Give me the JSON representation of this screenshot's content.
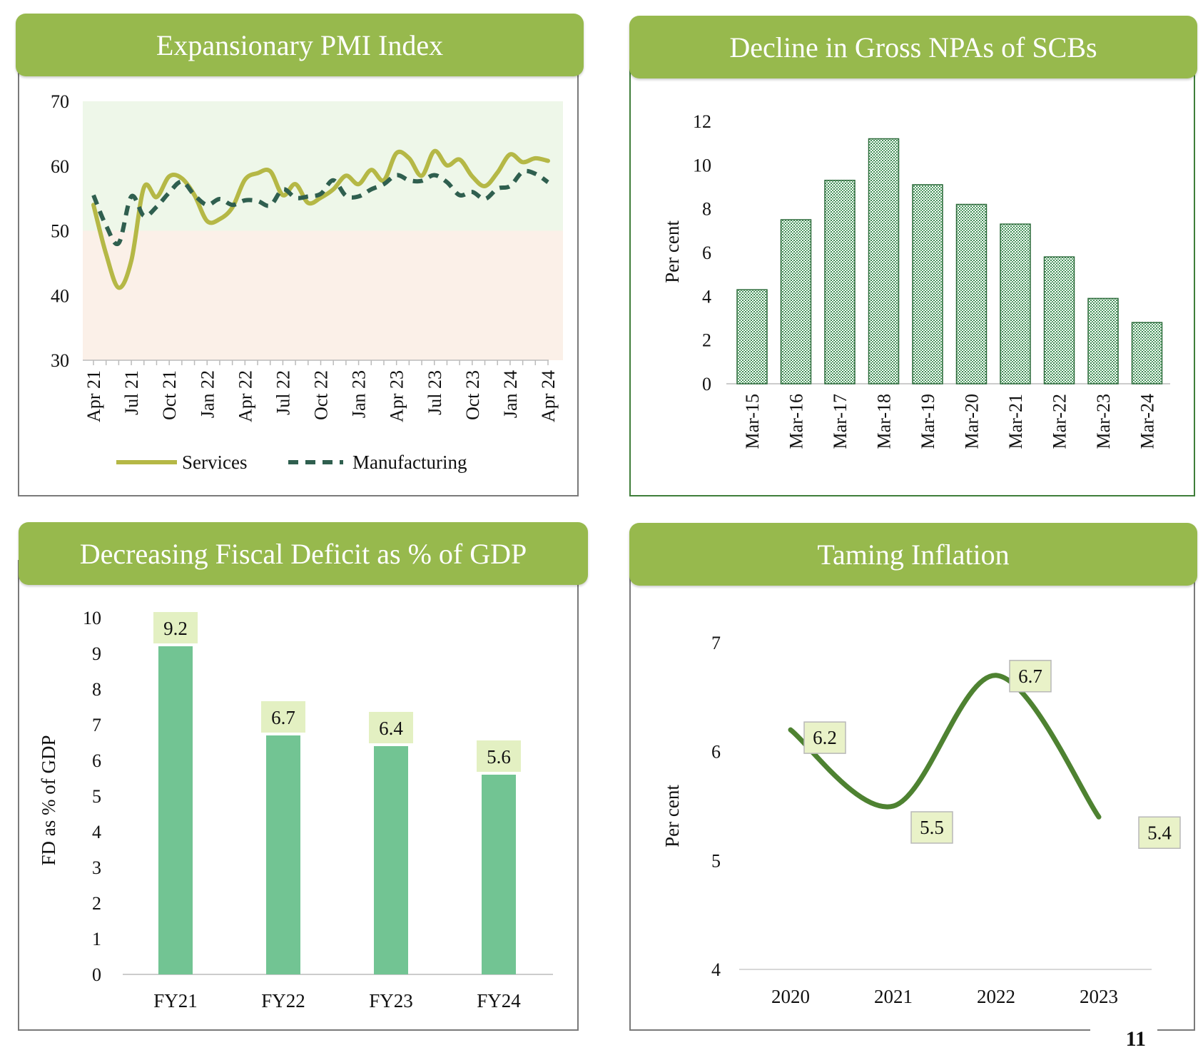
{
  "page_number": "11",
  "chart_data": [
    {
      "id": "pmi",
      "type": "line",
      "title": "Expansionary PMI Index",
      "ylim": [
        30,
        70
      ],
      "yticks": [
        "70",
        "60",
        "50",
        "40",
        "30"
      ],
      "x_tick_labels": [
        "Apr 21",
        "Jul 21",
        "Oct 21",
        "Jan 22",
        "Apr 22",
        "Jul 22",
        "Oct 22",
        "Jan 23",
        "Apr 23",
        "Jul 23",
        "Oct 23",
        "Jan 24",
        "Apr 24"
      ],
      "bands": {
        "expansion": [
          50,
          70
        ],
        "contraction": [
          30,
          50
        ]
      },
      "legend_position": "bottom",
      "series": [
        {
          "name": "Services",
          "style": "solid",
          "color": "#b5b846",
          "values": [
            54.0,
            46.4,
            41.2,
            45.4,
            56.7,
            55.2,
            58.4,
            58.1,
            55.5,
            51.5,
            51.8,
            53.6,
            57.9,
            58.9,
            59.2,
            55.5,
            57.2,
            54.3,
            55.1,
            56.4,
            58.5,
            57.2,
            59.4,
            57.8,
            62.0,
            61.2,
            58.5,
            62.3,
            60.1,
            61.0,
            58.4,
            56.9,
            59.0,
            61.8,
            60.6,
            61.2,
            60.8
          ]
        },
        {
          "name": "Manufacturing",
          "style": "dashed",
          "color": "#2f5f4f",
          "values": [
            55.5,
            50.8,
            48.1,
            55.3,
            52.3,
            53.7,
            55.9,
            57.6,
            55.5,
            54.0,
            54.9,
            54.0,
            54.7,
            54.6,
            53.9,
            56.4,
            55.1,
            55.3,
            55.7,
            57.8,
            55.4,
            55.3,
            56.4,
            57.2,
            58.6,
            57.8,
            57.7,
            58.6,
            57.5,
            55.5,
            56.0,
            54.9,
            56.5,
            56.9,
            59.1,
            58.8,
            57.5
          ]
        }
      ]
    },
    {
      "id": "npa",
      "type": "bar",
      "title": "Decline in Gross NPAs of SCBs",
      "ylabel": "Per cent",
      "ylim": [
        0,
        12
      ],
      "yticks": [
        "0",
        "2",
        "4",
        "6",
        "8",
        "10",
        "12"
      ],
      "categories": [
        "Mar-15",
        "Mar-16",
        "Mar-17",
        "Mar-18",
        "Mar-19",
        "Mar-20",
        "Mar-21",
        "Mar-22",
        "Mar-23",
        "Mar-24"
      ],
      "values": [
        4.3,
        7.5,
        9.3,
        11.2,
        9.1,
        8.2,
        7.3,
        5.8,
        3.9,
        2.8
      ],
      "bar_color": "#6cbe8e"
    },
    {
      "id": "fiscal",
      "type": "bar",
      "title": "Decreasing Fiscal Deficit as %  of GDP",
      "ylabel": "FD as % of GDP",
      "ylim": [
        0,
        10
      ],
      "yticks": [
        "0",
        "1",
        "2",
        "3",
        "4",
        "5",
        "6",
        "7",
        "8",
        "9",
        "10"
      ],
      "categories": [
        "FY21",
        "FY22",
        "FY23",
        "FY24"
      ],
      "values": [
        9.2,
        6.7,
        6.4,
        5.6
      ],
      "data_labels": [
        "9.2",
        "6.7",
        "6.4",
        "5.6"
      ],
      "bar_color": "#72c493"
    },
    {
      "id": "inflation",
      "type": "line",
      "title": "Taming Inflation",
      "ylabel": "Per cent",
      "ylim": [
        4,
        7
      ],
      "yticks": [
        "4",
        "5",
        "6",
        "7"
      ],
      "categories": [
        "2020",
        "2021",
        "2022",
        "2023"
      ],
      "values": [
        6.2,
        5.5,
        6.7,
        5.4
      ],
      "data_labels": [
        "6.2",
        "5.5",
        "6.7",
        "5.4"
      ],
      "line_color": "#4e8231"
    }
  ]
}
